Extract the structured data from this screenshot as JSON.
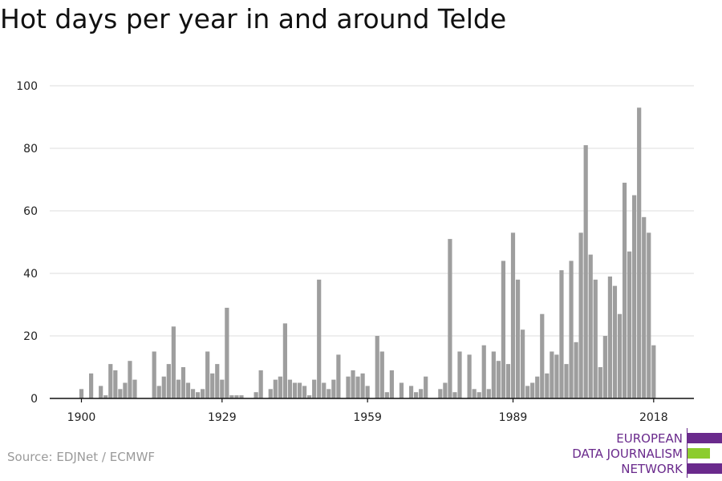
{
  "title": "Hot days per year in and around Telde",
  "source": "Source: EDJNet / ECMWF",
  "logo": {
    "lines": [
      "EUROPEAN",
      "DATA JOURNALISM",
      "NETWORK"
    ],
    "colors": {
      "purple": "#6a2a8c",
      "green": "#8ccc2e"
    }
  },
  "chart_data": {
    "type": "bar",
    "x_start": 1900,
    "x_end": 2018,
    "x_ticks": [
      1900,
      1929,
      1959,
      1989,
      2018
    ],
    "y_ticks": [
      0,
      20,
      40,
      60,
      80,
      100
    ],
    "ylim": [
      0,
      100
    ],
    "grid": true,
    "bar_color": "#9e9e9e",
    "values": [
      3,
      0,
      8,
      0,
      4,
      1,
      11,
      9,
      3,
      5,
      12,
      6,
      0,
      0,
      0,
      15,
      4,
      7,
      11,
      23,
      6,
      10,
      5,
      3,
      2,
      3,
      15,
      8,
      11,
      6,
      29,
      1,
      1,
      1,
      0,
      0,
      2,
      9,
      0,
      3,
      6,
      7,
      24,
      6,
      5,
      5,
      4,
      1,
      6,
      38,
      5,
      3,
      6,
      14,
      0,
      7,
      9,
      7,
      8,
      4,
      0,
      20,
      15,
      2,
      9,
      0,
      5,
      0,
      4,
      2,
      3,
      7,
      0,
      0,
      3,
      5,
      51,
      2,
      15,
      0,
      14,
      3,
      2,
      17,
      3,
      15,
      12,
      44,
      11,
      53,
      38,
      22,
      4,
      5,
      7,
      27,
      8,
      15,
      14,
      41,
      11,
      44,
      18,
      53,
      81,
      46,
      38,
      10,
      20,
      39,
      36,
      27,
      69,
      47,
      65,
      93,
      58,
      53,
      17
    ]
  }
}
